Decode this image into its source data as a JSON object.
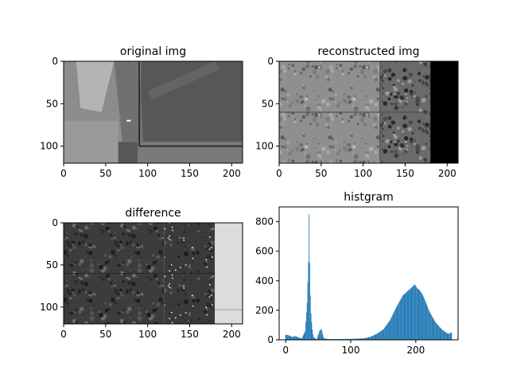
{
  "figure_background": "#ffffff",
  "chart_data": [
    {
      "type": "image",
      "title": "original img",
      "image_size": [
        213,
        120
      ],
      "xticks": [
        0,
        50,
        100,
        150,
        200
      ],
      "yticks": [
        0,
        50,
        100
      ],
      "colormap": "gray"
    },
    {
      "type": "image",
      "title": "reconstructed img",
      "image_size": [
        213,
        120
      ],
      "xticks": [
        0,
        50,
        100,
        150,
        200
      ],
      "yticks": [
        0,
        50,
        100
      ],
      "colormap": "gray"
    },
    {
      "type": "image",
      "title": "difference",
      "image_size": [
        213,
        120
      ],
      "xticks": [
        0,
        50,
        100,
        150,
        200
      ],
      "yticks": [
        0,
        50,
        100
      ],
      "colormap": "gray"
    },
    {
      "type": "bar",
      "title": "histgram",
      "xlim": [
        -10,
        265
      ],
      "ylim": [
        0,
        900
      ],
      "xticks": [
        0,
        100,
        200
      ],
      "yticks": [
        0,
        200,
        400,
        600,
        800
      ],
      "bar_color": "#1f77b4",
      "x": [
        0,
        5,
        10,
        15,
        20,
        25,
        30,
        33,
        35,
        36,
        37,
        38,
        39,
        40,
        41,
        42,
        43,
        45,
        48,
        52,
        55,
        58,
        60,
        65,
        70,
        80,
        90,
        100,
        110,
        120,
        130,
        140,
        150,
        160,
        170,
        175,
        180,
        185,
        190,
        195,
        198,
        200,
        202,
        205,
        210,
        215,
        220,
        230,
        240,
        250,
        255
      ],
      "values": [
        35,
        30,
        20,
        25,
        15,
        10,
        60,
        250,
        530,
        850,
        520,
        300,
        180,
        120,
        70,
        40,
        20,
        10,
        5,
        60,
        75,
        20,
        8,
        6,
        5,
        5,
        6,
        6,
        8,
        10,
        20,
        40,
        70,
        130,
        220,
        260,
        300,
        320,
        340,
        360,
        375,
        365,
        350,
        340,
        310,
        260,
        200,
        120,
        70,
        40,
        50
      ]
    }
  ]
}
